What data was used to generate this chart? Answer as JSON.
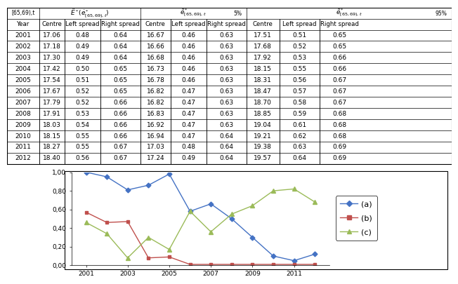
{
  "years": [
    2001,
    2002,
    2003,
    2004,
    2005,
    2006,
    2007,
    2008,
    2009,
    2010,
    2011,
    2012
  ],
  "series_a": [
    1.0,
    0.95,
    0.81,
    0.86,
    0.98,
    0.58,
    0.66,
    0.5,
    0.3,
    0.1,
    0.05,
    0.12
  ],
  "series_b": [
    0.57,
    0.46,
    0.47,
    0.08,
    0.09,
    0.01,
    0.01,
    0.01,
    0.01,
    0.01,
    0.01,
    0.01
  ],
  "series_c": [
    0.46,
    0.34,
    0.08,
    0.3,
    0.17,
    0.58,
    0.36,
    0.55,
    0.64,
    0.8,
    0.82,
    0.68
  ],
  "color_a": "#4472C4",
  "color_b": "#C0504D",
  "color_c": "#9BBB59",
  "ylim": [
    0.0,
    1.0
  ],
  "yticks": [
    0.0,
    0.2,
    0.4,
    0.6,
    0.8,
    1.0
  ],
  "ytick_labels": [
    "0,00",
    "0,20",
    "0,40",
    "0,60",
    "0,80",
    "1,00"
  ],
  "xtick_years": [
    2001,
    2003,
    2005,
    2007,
    2009,
    2011
  ],
  "legend_labels": [
    "(a)",
    "(b)",
    "(c)"
  ],
  "table_col_headers": [
    "Year",
    "Centre",
    "Left spread",
    "Right spread",
    "Centre",
    "Left spread",
    "Right spread",
    "Centre",
    "Left spread",
    "Right spread"
  ],
  "table_data": [
    [
      2001,
      17.06,
      0.48,
      0.64,
      16.67,
      0.46,
      0.63,
      17.51,
      0.51,
      0.65
    ],
    [
      2002,
      17.18,
      0.49,
      0.64,
      16.66,
      0.46,
      0.63,
      17.68,
      0.52,
      0.65
    ],
    [
      2003,
      17.3,
      0.49,
      0.64,
      16.68,
      0.46,
      0.63,
      17.92,
      0.53,
      0.66
    ],
    [
      2004,
      17.42,
      0.5,
      0.65,
      16.73,
      0.46,
      0.63,
      18.15,
      0.55,
      0.66
    ],
    [
      2005,
      17.54,
      0.51,
      0.65,
      16.78,
      0.46,
      0.63,
      18.31,
      0.56,
      0.67
    ],
    [
      2006,
      17.67,
      0.52,
      0.65,
      16.82,
      0.47,
      0.63,
      18.47,
      0.57,
      0.67
    ],
    [
      2007,
      17.79,
      0.52,
      0.66,
      16.82,
      0.47,
      0.63,
      18.7,
      0.58,
      0.67
    ],
    [
      2008,
      17.91,
      0.53,
      0.66,
      16.83,
      0.47,
      0.63,
      18.85,
      0.59,
      0.68
    ],
    [
      2009,
      18.03,
      0.54,
      0.66,
      16.92,
      0.47,
      0.63,
      19.04,
      0.61,
      0.68
    ],
    [
      2010,
      18.15,
      0.55,
      0.66,
      16.94,
      0.47,
      0.64,
      19.21,
      0.62,
      0.68
    ],
    [
      2011,
      18.27,
      0.55,
      0.67,
      17.03,
      0.48,
      0.64,
      19.38,
      0.63,
      0.69
    ],
    [
      2012,
      18.4,
      0.56,
      0.67,
      17.24,
      0.49,
      0.64,
      19.57,
      0.64,
      0.69
    ]
  ],
  "top_header_label": "[65,69),t",
  "col_group1_label": "$\\tilde{E}^*(\\dot{e}^*_{[65,69),t})$",
  "col_group2_label": "$\\tilde{e}^*_{[65,69),t}$",
  "col_group2_pct": "5%",
  "col_group3_label": "$\\tilde{e}^*_{[65,69),t}$",
  "col_group3_pct": "95%"
}
